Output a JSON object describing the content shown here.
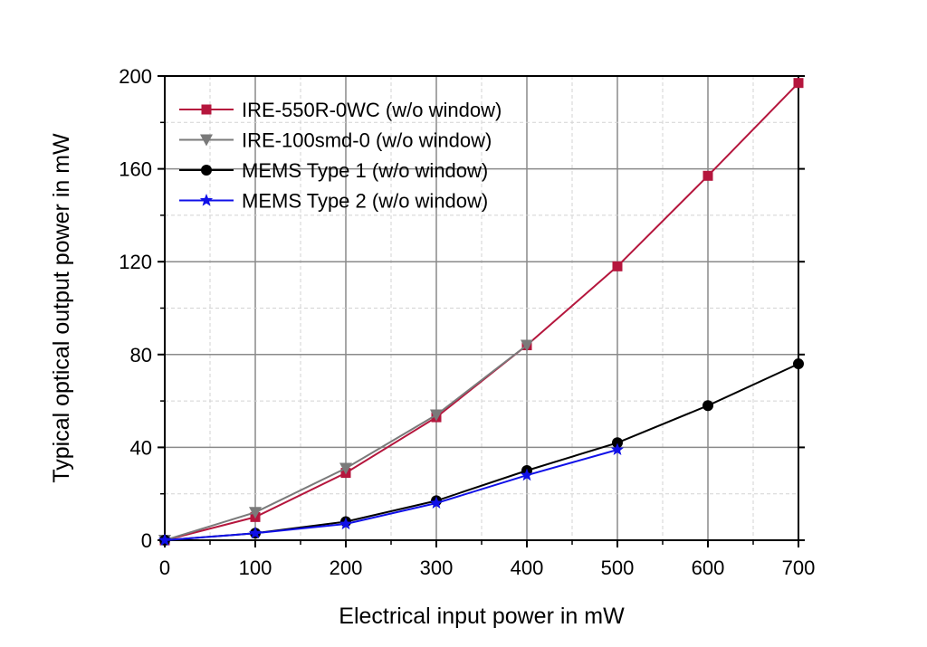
{
  "chart_data": {
    "type": "line",
    "title": "",
    "xlabel": "Electrical input power in mW",
    "ylabel": "Typical optical output power in mW",
    "xlim": [
      0,
      700
    ],
    "ylim": [
      0,
      200
    ],
    "x_ticks": [
      0,
      100,
      200,
      300,
      400,
      500,
      600,
      700
    ],
    "y_ticks": [
      0,
      40,
      80,
      120,
      160,
      200
    ],
    "x_tick_labels": [
      "0",
      "100",
      "200",
      "300",
      "400",
      "500",
      "600",
      "700"
    ],
    "y_tick_labels": [
      "0",
      "40",
      "80",
      "120",
      "160",
      "200"
    ],
    "grid": true,
    "legend_position": "top-left",
    "series": [
      {
        "name": "IRE-550R-0WC (w/o window)",
        "color": "#b5163d",
        "marker": "square",
        "x": [
          0,
          100,
          200,
          300,
          400,
          500,
          600,
          700
        ],
        "y": [
          0,
          10,
          29,
          53,
          84,
          118,
          157,
          197
        ]
      },
      {
        "name": "IRE-100smd-0 (w/o window)",
        "color": "#7a7a7a",
        "marker": "triangle-down",
        "x": [
          0,
          100,
          200,
          300,
          400
        ],
        "y": [
          0,
          12,
          31,
          54,
          84
        ]
      },
      {
        "name": "MEMS Type 1 (w/o window)",
        "color": "#000000",
        "marker": "circle",
        "x": [
          0,
          100,
          200,
          300,
          400,
          500,
          600,
          700
        ],
        "y": [
          0,
          3,
          8,
          17,
          30,
          42,
          58,
          76
        ]
      },
      {
        "name": "MEMS Type 2 (w/o window)",
        "color": "#1010e8",
        "marker": "star",
        "x": [
          0,
          100,
          200,
          300,
          400,
          500
        ],
        "y": [
          0,
          3,
          7,
          16,
          28,
          39
        ]
      }
    ]
  }
}
